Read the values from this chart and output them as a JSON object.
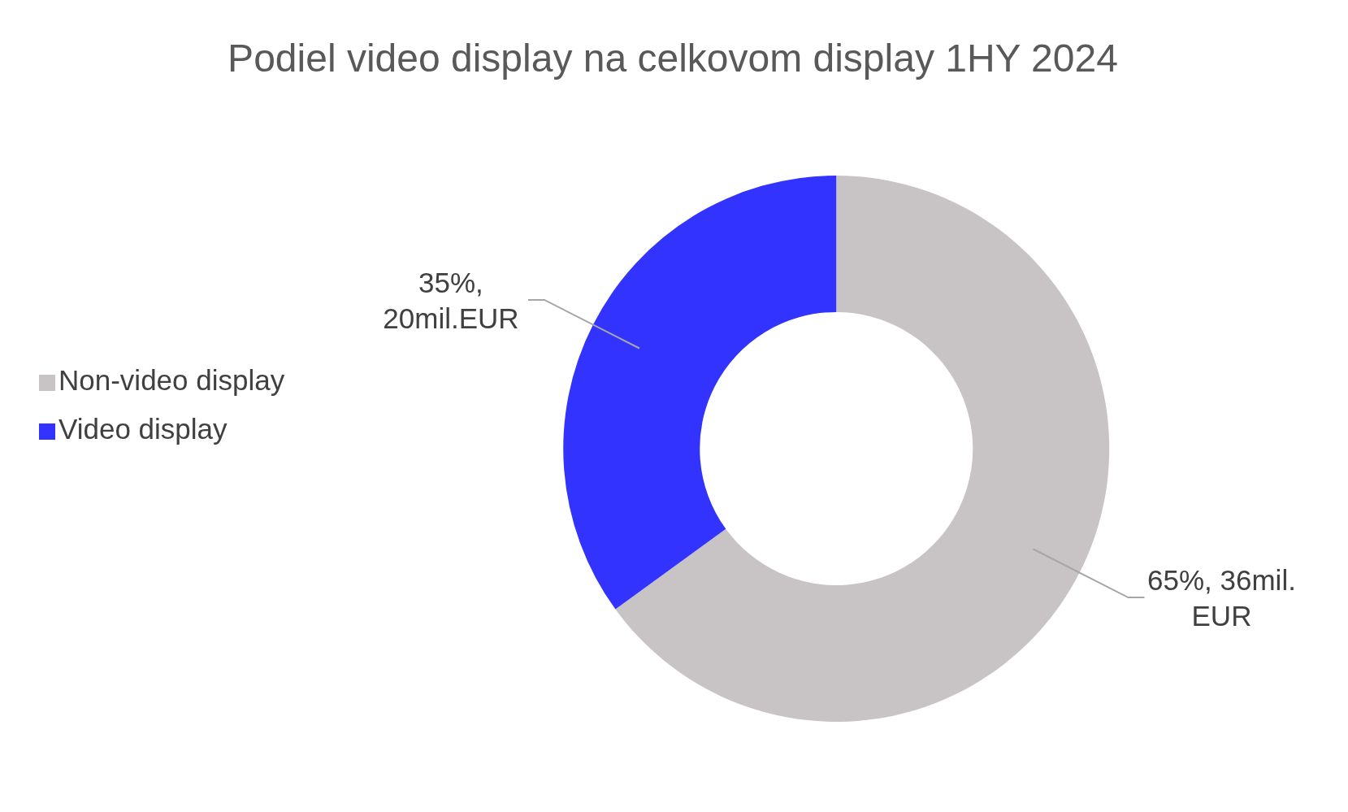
{
  "chart_data": {
    "type": "donut",
    "title": "Podiel video display na celkovom display 1HY 2024",
    "categories": [
      "Non-video display",
      "Video display"
    ],
    "values": [
      65,
      35
    ],
    "colors": [
      "#c8c3c4",
      "#3333ff"
    ],
    "value_labels": [
      "65%, 36mil. EUR",
      "35%, 20mil.EUR"
    ],
    "legend": "left"
  }
}
